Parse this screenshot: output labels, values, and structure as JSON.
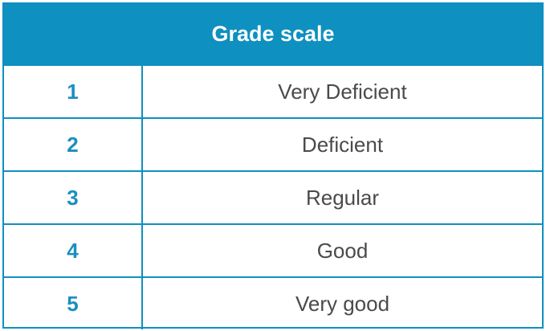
{
  "table": {
    "title": "Grade scale",
    "rows": [
      {
        "grade": "1",
        "label": "Very Deficient"
      },
      {
        "grade": "2",
        "label": "Deficient"
      },
      {
        "grade": "3",
        "label": "Regular"
      },
      {
        "grade": "4",
        "label": "Good"
      },
      {
        "grade": "5",
        "label": "Very good"
      }
    ]
  },
  "colors": {
    "accent": "#0e90c0",
    "grade_text": "#1a8fc0",
    "label_text": "#4a4a4a",
    "header_text": "#ffffff"
  }
}
